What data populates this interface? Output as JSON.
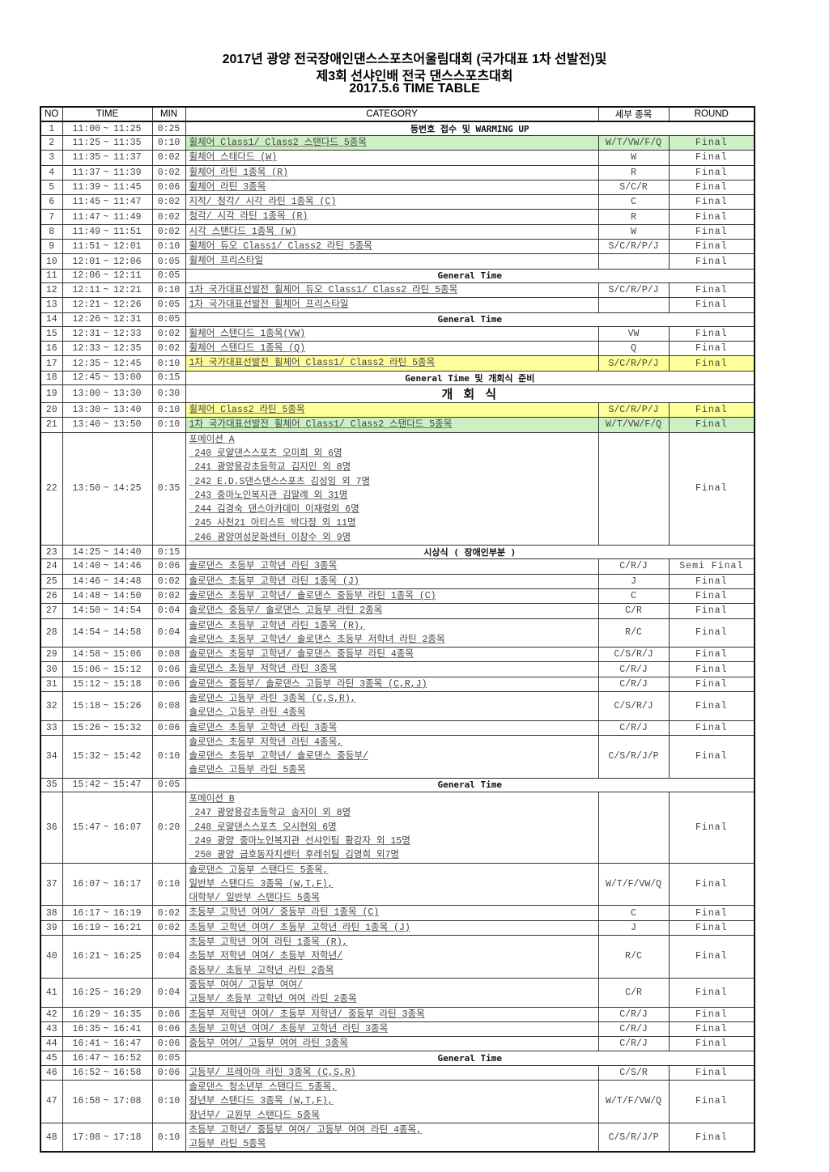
{
  "title": {
    "line1": "2017년  광양 전국장애인댄스스포츠어울림대회 (국가대표 1차 선발전)및",
    "line2": "제3회 선샤인배 전국 댄스스포츠대회",
    "line3": "2017.5.6  TIME TABLE"
  },
  "colors": {
    "green_highlight": "#ccefc4",
    "yellow_highlight": "#ffff99"
  },
  "headers": {
    "no": "NO",
    "time": "TIME",
    "min": "MIN",
    "category": "CATEGORY",
    "detail": "세부 종목",
    "round": "ROUND"
  },
  "rows": [
    {
      "no": "1",
      "start": "11:00",
      "end": "11:25",
      "min": "0:25",
      "span": "등번호 접수 및 WARMING UP"
    },
    {
      "no": "2",
      "start": "11:25",
      "end": "11:35",
      "min": "0:10",
      "cat": [
        "휠체어 Class1/ Class2 스탠다드 5종목"
      ],
      "detail": "W/T/VW/F/Q",
      "round": "Final",
      "hl": "green"
    },
    {
      "no": "3",
      "start": "11:35",
      "end": "11:37",
      "min": "0:02",
      "cat": [
        "휠체어 스태다드 (W)"
      ],
      "detail": "W",
      "round": "Final"
    },
    {
      "no": "4",
      "start": "11:37",
      "end": "11:39",
      "min": "0:02",
      "cat": [
        "휠체어 라틴 1종목 (R)"
      ],
      "detail": "R",
      "round": "Final"
    },
    {
      "no": "5",
      "start": "11:39",
      "end": "11:45",
      "min": "0:06",
      "cat": [
        "휠체어 라틴 3종목"
      ],
      "detail": "S/C/R",
      "round": "Final"
    },
    {
      "no": "6",
      "start": "11:45",
      "end": "11:47",
      "min": "0:02",
      "cat": [
        "지적/ 청각/ 시각 라틴 1종목 (C)"
      ],
      "detail": "C",
      "round": "Final"
    },
    {
      "no": "7",
      "start": "11:47",
      "end": "11:49",
      "min": "0:02",
      "cat": [
        "청각/ 시각 라틴 1종목 (R)"
      ],
      "detail": "R",
      "round": "Final"
    },
    {
      "no": "8",
      "start": "11:49",
      "end": "11:51",
      "min": "0:02",
      "cat": [
        "시각 스탠다드 1종목 (W)"
      ],
      "detail": "W",
      "round": "Final"
    },
    {
      "no": "9",
      "start": "11:51",
      "end": "12:01",
      "min": "0:10",
      "cat": [
        "휠체어 듀오 Class1/ Class2 라틴 5종목"
      ],
      "detail": "S/C/R/P/J",
      "round": "Final"
    },
    {
      "no": "10",
      "start": "12:01",
      "end": "12:06",
      "min": "0:05",
      "cat": [
        "휠체어 프리스타일"
      ],
      "detail": "",
      "round": "Final"
    },
    {
      "no": "11",
      "start": "12:06",
      "end": "12:11",
      "min": "0:05",
      "span": "General Time"
    },
    {
      "no": "12",
      "start": "12:11",
      "end": "12:21",
      "min": "0:10",
      "cat": [
        "1차 국가대표선발전 휠체어 듀오 Class1/ Class2 라틴 5종목"
      ],
      "detail": "S/C/R/P/J",
      "round": "Final"
    },
    {
      "no": "13",
      "start": "12:21",
      "end": "12:26",
      "min": "0:05",
      "cat": [
        "1차 국가대표선발전 휠체어 프리스타일"
      ],
      "detail": "",
      "round": "Final"
    },
    {
      "no": "14",
      "start": "12:26",
      "end": "12:31",
      "min": "0:05",
      "span": "General Time"
    },
    {
      "no": "15",
      "start": "12:31",
      "end": "12:33",
      "min": "0:02",
      "cat": [
        "휠체어 스탠다드 1종목(VW)"
      ],
      "detail": "VW",
      "round": "Final"
    },
    {
      "no": "16",
      "start": "12:33",
      "end": "12:35",
      "min": "0:02",
      "cat": [
        "휠체어 스탠다드 1종목 (Q)"
      ],
      "detail": "Q",
      "round": "Final"
    },
    {
      "no": "17",
      "start": "12:35",
      "end": "12:45",
      "min": "0:10",
      "cat": [
        "1차 국가대표선발전 휠체어 Class1/ Class2 라틴 5종목"
      ],
      "detail": "S/C/R/P/J",
      "round": "Final",
      "hl": "yellow"
    },
    {
      "no": "18",
      "start": "12:45",
      "end": "13:00",
      "min": "0:15",
      "span": "General Time 및 개회식 준비"
    },
    {
      "no": "19",
      "start": "13:00",
      "end": "13:30",
      "min": "0:30",
      "span": "개 회 식",
      "big": true
    },
    {
      "no": "20",
      "start": "13:30",
      "end": "13:40",
      "min": "0:10",
      "cat": [
        "휠체어 Class2 라틴 5종목"
      ],
      "detail": "S/C/R/P/J",
      "round": "Final",
      "hl": "yellow"
    },
    {
      "no": "21",
      "start": "13:40",
      "end": "13:50",
      "min": "0:10",
      "cat": [
        "1차 국가대표선발전 휠체어 Class1/ Class2 스탠다드 5종목"
      ],
      "detail": "W/T/VW/F/Q",
      "round": "Final",
      "hl": "green"
    },
    {
      "no": "22",
      "start": "13:50",
      "end": "14:25",
      "min": "0:35",
      "cat": [
        "포메이션 A",
        " 240 로얄댄스스포츠 오미희 외 6명",
        " 241 광양용강초등학교 김지민 외 8명",
        " 242 E.D.S댄스댄스스포츠 김성임 외 7명",
        " 243 중마노인복지관 김말례 외 31명",
        " 244 김경숙 댄스아카데미 이재령외 6명",
        " 245 사천21 아티스트 박다정 외 11명",
        " 246 광양여성문화센터 이창수 외 9명"
      ],
      "detail": "",
      "round": "Final"
    },
    {
      "no": "23",
      "start": "14:25",
      "end": "14:40",
      "min": "0:15",
      "span": "시상식 ( 장애인부분 )"
    },
    {
      "no": "24",
      "start": "14:40",
      "end": "14:46",
      "min": "0:06",
      "cat": [
        "솔로댄스 초등부 고학년 라틴 3종목"
      ],
      "detail": "C/R/J",
      "round": "Semi Final"
    },
    {
      "no": "25",
      "start": "14:46",
      "end": "14:48",
      "min": "0:02",
      "cat": [
        "솔로댄스 초등부 고학년 라틴 1종목 (J)"
      ],
      "detail": "J",
      "round": "Final"
    },
    {
      "no": "26",
      "start": "14:48",
      "end": "14:50",
      "min": "0:02",
      "cat": [
        "솔로댄스 초등부 고학년/ 솔로댄스 중등부 라틴 1종목 (C)"
      ],
      "detail": "C",
      "round": "Final"
    },
    {
      "no": "27",
      "start": "14:50",
      "end": "14:54",
      "min": "0:04",
      "cat": [
        "솔로댄스 중등부/ 솔로댄스 고등부 라틴 2종목"
      ],
      "detail": "C/R",
      "round": "Final"
    },
    {
      "no": "28",
      "start": "14:54",
      "end": "14:58",
      "min": "0:04",
      "cat": [
        "솔로댄스 초등부 고학년 라틴 1종목 (R),",
        "솔로댄스 초등부 고학년/ 솔로댄스 초등부 저학녀 라틴 2종목"
      ],
      "detail": "R/C",
      "round": "Final"
    },
    {
      "no": "29",
      "start": "14:58",
      "end": "15:06",
      "min": "0:08",
      "cat": [
        "솔로댄스 초등부 고학년/ 솔로댄스 중등부 라틴 4종목"
      ],
      "detail": "C/S/R/J",
      "round": "Final"
    },
    {
      "no": "30",
      "start": "15:06",
      "end": "15:12",
      "min": "0:06",
      "cat": [
        "솔로댄스 초등부 저학년 라틴 3종목"
      ],
      "detail": "C/R/J",
      "round": "Final"
    },
    {
      "no": "31",
      "start": "15:12",
      "end": "15:18",
      "min": "0:06",
      "cat": [
        "솔로댄스 중등부/ 솔로댄스 고등부 라틴 3종목 (C,R,J)"
      ],
      "detail": "C/R/J",
      "round": "Final"
    },
    {
      "no": "32",
      "start": "15:18",
      "end": "15:26",
      "min": "0:08",
      "cat": [
        "솔로댄스 고등부 라틴 3종목 (C,S,R),",
        "솔로댄스 고등부 라틴 4종목"
      ],
      "detail": "C/S/R/J",
      "round": "Final"
    },
    {
      "no": "33",
      "start": "15:26",
      "end": "15:32",
      "min": "0:06",
      "cat": [
        "솔로댄스 초등부 고학년 라틴 3종목"
      ],
      "detail": "C/R/J",
      "round": "Final"
    },
    {
      "no": "34",
      "start": "15:32",
      "end": "15:42",
      "min": "0:10",
      "cat": [
        "솔로댄스 초등부 저학년 라틴 4종목,",
        "솔로댄스 초등부 고학년/ 솔로댄스 중등부/",
        "솔로댄스 고등부 라틴 5종목"
      ],
      "detail": "C/S/R/J/P",
      "round": "Final"
    },
    {
      "no": "35",
      "start": "15:42",
      "end": "15:47",
      "min": "0:05",
      "span": "General Time"
    },
    {
      "no": "36",
      "start": "15:47",
      "end": "16:07",
      "min": "0:20",
      "cat": [
        "포메이션 B",
        " 247 광양용강초등학교 송지이 외 8명",
        " 248 로얄댄스스포츠 오시현외 6명",
        " 249 광양 중마노인복지관 선샤인팀 황강자 외 15명",
        " 250 광양 금호동자치센터 후레쉬팀 김영희 외7명"
      ],
      "detail": "",
      "round": "Final"
    },
    {
      "no": "37",
      "start": "16:07",
      "end": "16:17",
      "min": "0:10",
      "cat": [
        "솔로댄스 고등부 스탠다드 5종목,",
        "일반부 스탠다드 3종목 (W,T,F),",
        "대학부/ 일반부 스탠다드 5종목"
      ],
      "detail": "W/T/F/VW/Q",
      "round": "Final"
    },
    {
      "no": "38",
      "start": "16:17",
      "end": "16:19",
      "min": "0:02",
      "cat": [
        "초등부 고학년 여여/ 중등부 라틴 1종목 (C)"
      ],
      "detail": "C",
      "round": "Final"
    },
    {
      "no": "39",
      "start": "16:19",
      "end": "16:21",
      "min": "0:02",
      "cat": [
        "초등부 고학년 여여/ 초등부 고학년 라틴 1종목 (J)"
      ],
      "detail": "J",
      "round": "Final"
    },
    {
      "no": "40",
      "start": "16:21",
      "end": "16:25",
      "min": "0:04",
      "cat": [
        "초등부 고학년 여여 라틴 1종목 (R),",
        "초등부 저학년 여여/ 초등부 저학년/",
        "중등부/ 초등부 고학년 라틴 2종목"
      ],
      "detail": "R/C",
      "round": "Final"
    },
    {
      "no": "41",
      "start": "16:25",
      "end": "16:29",
      "min": "0:04",
      "cat": [
        "중등부 여여/ 고등부 여여/",
        "고등부/ 초등부 고학년 여여 라틴 2종목"
      ],
      "detail": "C/R",
      "round": "Final"
    },
    {
      "no": "42",
      "start": "16:29",
      "end": "16:35",
      "min": "0:06",
      "cat": [
        "초등부 저학년 여여/ 초등부 저학년/ 중등부 라틴 3종목"
      ],
      "detail": "C/R/J",
      "round": "Final"
    },
    {
      "no": "43",
      "start": "16:35",
      "end": "16:41",
      "min": "0:06",
      "cat": [
        "초등부 고학년 여여/ 초등부 고학년 라틴 3종목"
      ],
      "detail": "C/R/J",
      "round": "Final"
    },
    {
      "no": "44",
      "start": "16:41",
      "end": "16:47",
      "min": "0:06",
      "cat": [
        "중등부 여여/ 고등부 여여 라틴 3종목"
      ],
      "detail": "C/R/J",
      "round": "Final"
    },
    {
      "no": "45",
      "start": "16:47",
      "end": "16:52",
      "min": "0:05",
      "span": "General Time"
    },
    {
      "no": "46",
      "start": "16:52",
      "end": "16:58",
      "min": "0:06",
      "cat": [
        "고등부/ 프레아마 라틴 3종목 (C,S,R)"
      ],
      "detail": "C/S/R",
      "round": "Final"
    },
    {
      "no": "47",
      "start": "16:58",
      "end": "17:08",
      "min": "0:10",
      "cat": [
        "솔로댄스 청소년부 스탠다드 5종목,",
        "장년부 스탠다드 3종목 (W,T,F),",
        "장년부/ 교원부 스탠다드 5종목"
      ],
      "detail": "W/T/F/VW/Q",
      "round": "Final"
    },
    {
      "no": "48",
      "start": "17:08",
      "end": "17:18",
      "min": "0:10",
      "cat": [
        "초등부 고학년/ 중등부 여여/ 고등부 여여 라틴 4종목,",
        "고등부 라틴 5종목"
      ],
      "detail": "C/S/R/J/P",
      "round": "Final"
    }
  ],
  "tilde": "~"
}
